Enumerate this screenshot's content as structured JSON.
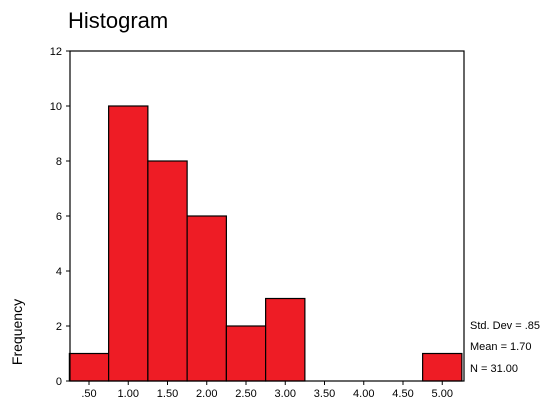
{
  "chart_data": {
    "type": "bar",
    "title": "Histogram",
    "xlabel": "",
    "ylabel": "Frequency",
    "ylim": [
      0,
      12
    ],
    "y_ticks": [
      0,
      2,
      4,
      6,
      8,
      10,
      12
    ],
    "categories": [
      ".50",
      "1.00",
      "1.50",
      "2.00",
      "2.50",
      "3.00",
      "3.50",
      "4.00",
      "4.50",
      "5.00"
    ],
    "values": [
      1,
      10,
      8,
      6,
      2,
      3,
      0,
      0,
      0,
      1
    ],
    "bar_color": "#ee1c25",
    "grid": false,
    "stats": {
      "std_dev": "Std. Dev = .85",
      "mean": "Mean = 1.70",
      "n": "N = 31.00"
    }
  }
}
